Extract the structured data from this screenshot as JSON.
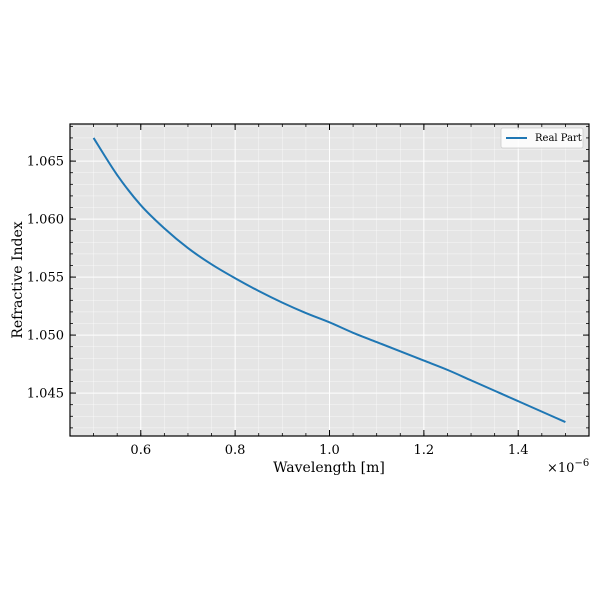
{
  "chart_data": {
    "type": "line",
    "xlabel": "Wavelength [m]",
    "ylabel": "Refractive Index",
    "x_offset_label": "×10",
    "x_offset_exponent": "−6",
    "xlim": [
      0.45,
      1.55
    ],
    "ylim": [
      1.0413,
      1.0682
    ],
    "x_ticks": [
      0.6,
      0.8,
      1.0,
      1.2,
      1.4
    ],
    "x_tick_labels": [
      "0.6",
      "0.8",
      "1.0",
      "1.2",
      "1.4"
    ],
    "y_ticks": [
      1.045,
      1.05,
      1.055,
      1.06,
      1.065
    ],
    "y_tick_labels": [
      "1.045",
      "1.050",
      "1.055",
      "1.060",
      "1.065"
    ],
    "grid": true,
    "legend_position": "top-right",
    "series": [
      {
        "name": "Real Part",
        "color": "#1f77b4",
        "x": [
          0.5,
          0.55,
          0.6,
          0.65,
          0.7,
          0.75,
          0.8,
          0.85,
          0.9,
          0.95,
          1.0,
          1.05,
          1.1,
          1.15,
          1.2,
          1.25,
          1.3,
          1.35,
          1.4,
          1.45,
          1.5
        ],
        "y": [
          1.067,
          1.0638,
          1.0612,
          1.0592,
          1.0575,
          1.0561,
          1.0549,
          1.0538,
          1.0528,
          1.0519,
          1.0511,
          1.0502,
          1.0494,
          1.0486,
          1.0478,
          1.047,
          1.0461,
          1.0452,
          1.0443,
          1.0434,
          1.0425
        ]
      }
    ]
  }
}
